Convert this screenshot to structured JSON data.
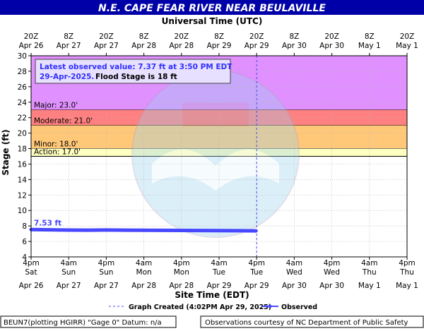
{
  "title": "N.E. CAPE FEAR RIVER NEAR BEULAVILLE",
  "top_axis_title": "Universal Time (UTC)",
  "bottom_axis_title": "Site Time (EDT)",
  "y_axis_title": "Stage (ft)",
  "info_box": {
    "line1": "Latest observed value: 7.37 ft at 3:50 PM EDT",
    "line2_date": "29-Apr-2025.",
    "line2_flood": "Flood Stage is 18 ft"
  },
  "footer": {
    "left": "BEUN7(plotting HGIRR) \"Gage 0\" Datum: n/a",
    "right": "Observations courtesy of NC Department of Public Safety"
  },
  "legend": {
    "created_label": "Graph Created (4:02PM Apr 29, 2025)",
    "observed_label": "Observed"
  },
  "watermark": "NOAA NATIONAL OCEANIC AND ATMOSPHERIC ADMINISTRATION U.S. DEPARTMENT OF COMMERCE",
  "colors": {
    "title_bg": "#0000a8",
    "title_text": "#ffffff",
    "major": "#e090ff",
    "moderate": "#ff8080",
    "minor": "#ffc878",
    "action": "#ffffc0",
    "observed": "#4848ff",
    "created_line": "#4848ff"
  },
  "chart_data": {
    "type": "line",
    "xlabel": "Site Time (EDT)",
    "ylabel": "Stage (ft)",
    "xlim_hours": [
      0,
      120
    ],
    "ylim": [
      4,
      30
    ],
    "grid": true,
    "yticks": [
      4,
      6,
      8,
      10,
      12,
      14,
      16,
      18,
      20,
      22,
      24,
      26,
      28,
      30
    ],
    "top_ticks": [
      {
        "h": 0,
        "l1": "20Z",
        "l2": "Apr 26"
      },
      {
        "h": 12,
        "l1": "8Z",
        "l2": "Apr 27"
      },
      {
        "h": 24,
        "l1": "20Z",
        "l2": "Apr 27"
      },
      {
        "h": 36,
        "l1": "8Z",
        "l2": "Apr 28"
      },
      {
        "h": 48,
        "l1": "20Z",
        "l2": "Apr 28"
      },
      {
        "h": 60,
        "l1": "8Z",
        "l2": "Apr 29"
      },
      {
        "h": 72,
        "l1": "20Z",
        "l2": "Apr 29"
      },
      {
        "h": 84,
        "l1": "8Z",
        "l2": "Apr 30"
      },
      {
        "h": 96,
        "l1": "20Z",
        "l2": "Apr 30"
      },
      {
        "h": 108,
        "l1": "8Z",
        "l2": "May  1"
      },
      {
        "h": 120,
        "l1": "20Z",
        "l2": "May  1"
      }
    ],
    "bottom_ticks": [
      {
        "h": 0,
        "l1": "4pm",
        "l2": "Sat",
        "l3": "Apr 26"
      },
      {
        "h": 12,
        "l1": "4am",
        "l2": "Sun",
        "l3": "Apr 27"
      },
      {
        "h": 24,
        "l1": "4pm",
        "l2": "Sun",
        "l3": "Apr 27"
      },
      {
        "h": 36,
        "l1": "4am",
        "l2": "Mon",
        "l3": "Apr 28"
      },
      {
        "h": 48,
        "l1": "4pm",
        "l2": "Mon",
        "l3": "Apr 28"
      },
      {
        "h": 60,
        "l1": "4am",
        "l2": "Tue",
        "l3": "Apr 29"
      },
      {
        "h": 72,
        "l1": "4pm",
        "l2": "Tue",
        "l3": "Apr 29"
      },
      {
        "h": 84,
        "l1": "4am",
        "l2": "Wed",
        "l3": "Apr 30"
      },
      {
        "h": 96,
        "l1": "4pm",
        "l2": "Wed",
        "l3": "Apr 30"
      },
      {
        "h": 108,
        "l1": "4am",
        "l2": "Thu",
        "l3": "May 1"
      },
      {
        "h": 120,
        "l1": "4pm",
        "l2": "Thu",
        "l3": "May 1"
      }
    ],
    "bands": [
      {
        "name": "Major",
        "label": "Major: 23.0'",
        "from": 23.0,
        "to": 30,
        "color": "#e090ff"
      },
      {
        "name": "Moderate",
        "label": "Moderate: 21.0'",
        "from": 21.0,
        "to": 23.0,
        "color": "#ff8080"
      },
      {
        "name": "Minor",
        "label": "Minor: 18.0'",
        "from": 18.0,
        "to": 21.0,
        "color": "#ffc878"
      },
      {
        "name": "Action",
        "label": "Action: 17.0'",
        "from": 17.0,
        "to": 18.0,
        "color": "#ffffc0"
      }
    ],
    "created_at_hour": 72,
    "series": [
      {
        "name": "Observed",
        "start_label": "7.53 ft",
        "points": [
          [
            0,
            7.53
          ],
          [
            6,
            7.5
          ],
          [
            12,
            7.47
          ],
          [
            18,
            7.46
          ],
          [
            24,
            7.48
          ],
          [
            30,
            7.46
          ],
          [
            36,
            7.44
          ],
          [
            42,
            7.43
          ],
          [
            48,
            7.42
          ],
          [
            54,
            7.41
          ],
          [
            60,
            7.4
          ],
          [
            66,
            7.38
          ],
          [
            71.8,
            7.37
          ]
        ]
      }
    ]
  }
}
